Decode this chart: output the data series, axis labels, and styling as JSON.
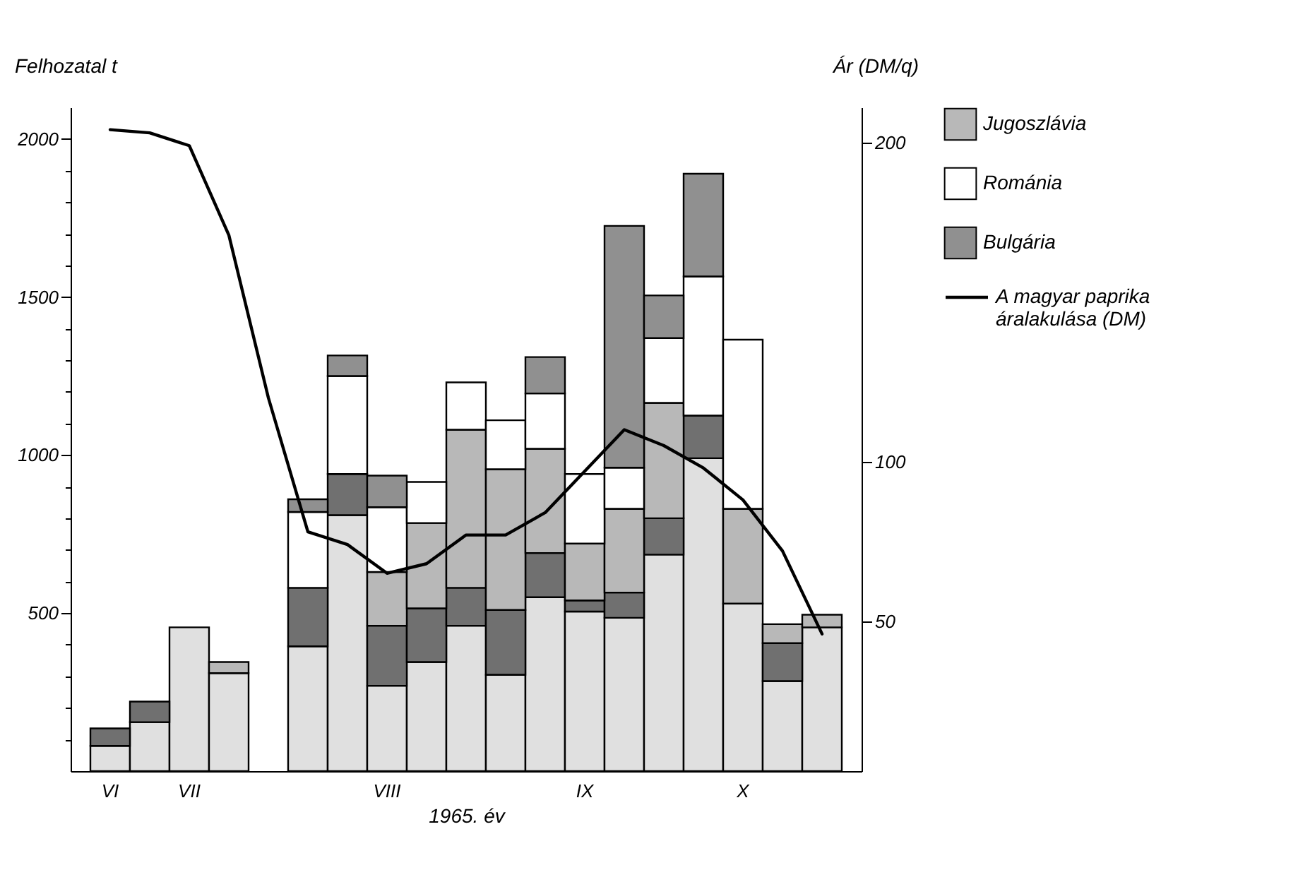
{
  "chart_data": {
    "type": "bar",
    "stacked": true,
    "xlabel": "1965. év",
    "ylabel": "Felhozatal t",
    "y2label": "Ár (DM/q)",
    "legend": "right",
    "categories": [
      "VI",
      null,
      "VII",
      null,
      null,
      null,
      null,
      "VIII",
      null,
      null,
      null,
      null,
      "IX",
      null,
      null,
      null,
      "X",
      null,
      null
    ],
    "ylim": [
      0,
      2100
    ],
    "yticks": [
      {
        "value": 100,
        "label": null
      },
      {
        "value": 200,
        "label": null
      },
      {
        "value": 300,
        "label": null
      },
      {
        "value": 400,
        "label": null
      },
      500,
      {
        "value": 600,
        "label": null
      },
      {
        "value": 700,
        "label": null
      },
      {
        "value": 800,
        "label": null
      },
      {
        "value": 900,
        "label": null
      },
      1000,
      {
        "value": 1100,
        "label": null
      },
      {
        "value": 1200,
        "label": null
      },
      {
        "value": 1300,
        "label": null
      },
      {
        "value": 1400,
        "label": null
      },
      1500,
      {
        "value": 1600,
        "label": null
      },
      {
        "value": 1700,
        "label": null
      },
      {
        "value": 1800,
        "label": null
      },
      {
        "value": 1900,
        "label": null
      },
      2000
    ],
    "y2lim": [
      3,
      211
    ],
    "y2ticks": [
      50,
      100,
      200
    ],
    "series": [
      {
        "color": "#e0e0e0",
        "values": [
          80,
          155,
          455,
          310,
          null,
          395,
          810,
          270,
          345,
          460,
          305,
          550,
          505,
          485,
          685,
          990,
          530,
          285,
          455
        ]
      },
      {
        "color": "#707070",
        "values": [
          55,
          65,
          null,
          null,
          null,
          185,
          130,
          190,
          170,
          120,
          205,
          140,
          35,
          80,
          115,
          135,
          null,
          120,
          null
        ]
      },
      {
        "name": "Jugoszlávia",
        "color": "#b8b8b8",
        "values": [
          null,
          null,
          null,
          35,
          null,
          null,
          null,
          170,
          270,
          500,
          445,
          330,
          180,
          265,
          365,
          null,
          300,
          60,
          40
        ]
      },
      {
        "name": "Románia",
        "color": "#ffffff",
        "values": [
          null,
          null,
          null,
          null,
          null,
          240,
          310,
          205,
          130,
          150,
          155,
          175,
          220,
          130,
          205,
          440,
          535,
          null,
          null
        ]
      },
      {
        "name": "Bulgária",
        "color": "#909090",
        "values": [
          null,
          null,
          null,
          null,
          null,
          40,
          65,
          100,
          null,
          null,
          null,
          115,
          null,
          765,
          135,
          325,
          null,
          null,
          null
        ]
      },
      {
        "name": "A magyar paprika áralakulása (DM)",
        "type": "line",
        "axis": "y2",
        "color": "#000000",
        "marker": "none",
        "line_style": "solid",
        "values": [
          204,
          203,
          199,
          171,
          120,
          78,
          74,
          65,
          68,
          77,
          77,
          84,
          97,
          110,
          105,
          98,
          88,
          72,
          46
        ]
      }
    ]
  }
}
